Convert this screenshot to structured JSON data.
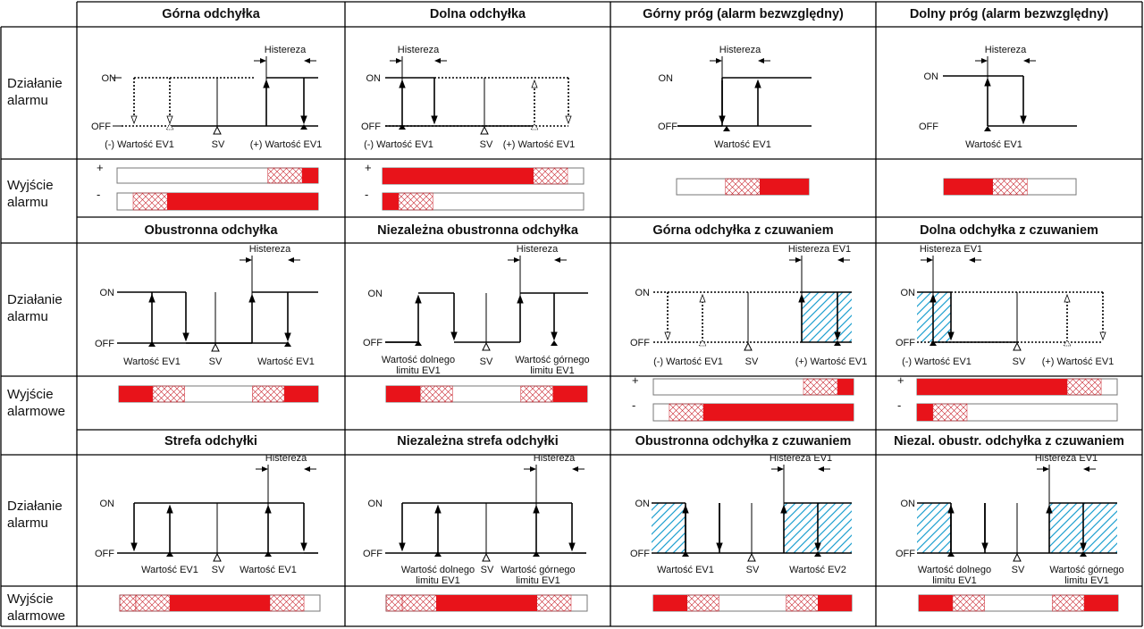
{
  "colors": {
    "alarm": "#e8131a",
    "hatch": "#c8202a",
    "standby": "#1ea0d0",
    "line": "#000000"
  },
  "row_labels": {
    "r1_action": "Działanie\nalarmu",
    "r1_output": "Wyjście\nalarmu",
    "r2_action": "Działanie\nalarmu",
    "r2_output": "Wyjście\nalarmowe",
    "r3_action": "Działanie\nalarmu",
    "r3_output": "Wyjście\nalarmowe"
  },
  "output_signs": {
    "plus": "+",
    "minus": "-"
  },
  "signal": {
    "on": "ON",
    "off": "OFF"
  },
  "sv": "SV",
  "labels": {
    "hyst": "Histereza",
    "hyst_ev1": "Histereza EV1",
    "neg_ev1": "(-) Wartość EV1",
    "pos_ev1": "(+) Wartość EV1",
    "ev1": "Wartość EV1",
    "ev2": "Wartość EV2",
    "lower_ev1": "Wartość dolnego\nlimitu EV1",
    "upper_ev1": "Wartość górnego\nlimitu EV1"
  },
  "headers": {
    "h1": "Górna odchyłka",
    "h2": "Dolna odchyłka",
    "h3": "Górny próg (alarm bezwzględny)",
    "h4": "Dolny próg (alarm bezwzględny)",
    "h5": "Obustronna odchyłka",
    "h6": "Niezależna obustronna odchyłka",
    "h7": "Górna odchyłka z czuwaniem",
    "h8": "Dolna odchyłka z czuwaniem",
    "h9": "Strefa odchyłki",
    "h10": "Niezależna strefa odchyłki",
    "h11": "Obustronna odchyłka z czuwaniem",
    "h12": "Niezal. obustr. odchyłka z czuwaniem"
  }
}
